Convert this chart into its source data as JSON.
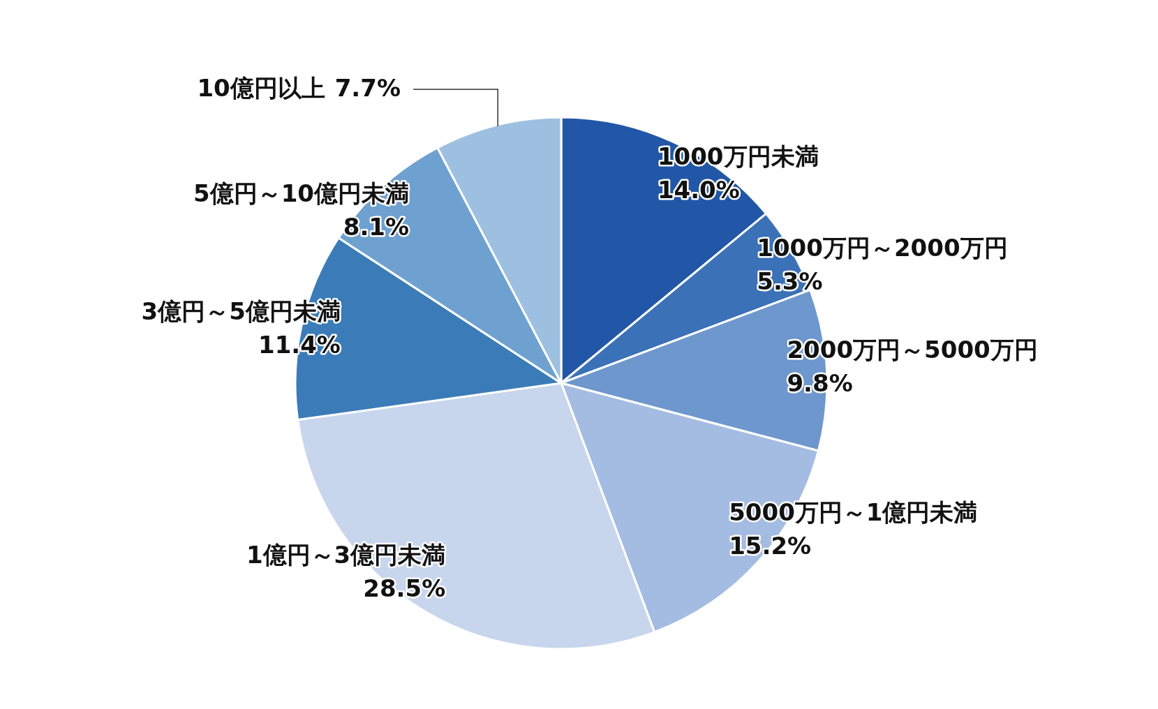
{
  "chart_data": {
    "type": "pie",
    "categories": [
      "1000万円未満",
      "1000万円～2000万円",
      "2000万円～5000万円",
      "5000万円～1億円未満",
      "1億円～3億円未満",
      "3億円～5億円未満",
      "5億円～10億円未満",
      "10億円以上"
    ],
    "values": [
      14.0,
      5.3,
      9.8,
      15.2,
      28.5,
      11.4,
      8.1,
      7.7
    ],
    "value_labels": [
      "14.0%",
      "5.3%",
      "9.8%",
      "15.2%",
      "28.5%",
      "11.4%",
      "8.1%",
      "7.7%"
    ],
    "colors": [
      "#2157a6",
      "#3b71b7",
      "#6e97cd",
      "#a4bce2",
      "#c7d6ed",
      "#3b7cb8",
      "#6fa1d0",
      "#9dc0e0"
    ]
  }
}
